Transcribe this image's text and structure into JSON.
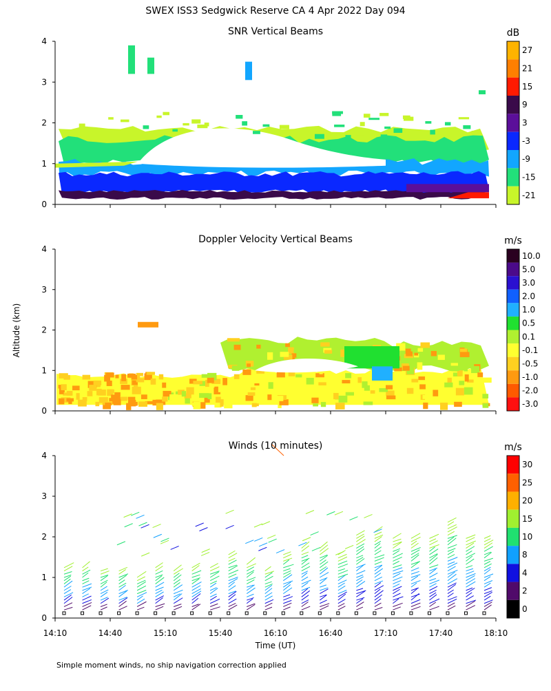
{
  "title": "SWEX ISS3 Sedgwick Reserve CA   4 Apr 2022 Day 094",
  "footnote": "Simple moment winds, no ship navigation correction applied",
  "y_axis_label": "Altitude (km)",
  "x_axis_label": "Time (UT)",
  "chart_data": [
    {
      "type": "heatmap",
      "title": "SNR Vertical Beams",
      "ylim": [
        0,
        4
      ],
      "y_ticks": [
        "0",
        "1",
        "2",
        "3",
        "4"
      ],
      "x_range": [
        "14:10",
        "18:10"
      ],
      "colorbar": {
        "unit": "dB",
        "labels": [
          "27",
          "21",
          "15",
          "9",
          "3",
          "-3",
          "-9",
          "-15",
          "-21"
        ],
        "colors": [
          "#ffb300",
          "#ff7f00",
          "#ff1a00",
          "#3a0a4a",
          "#5b0f9a",
          "#0a28ff",
          "#12a6ff",
          "#22e07a",
          "#c8f52a"
        ]
      },
      "layers": [
        {
          "band": "surface",
          "alt": [
            0.15,
            0.3
          ],
          "color": "#3a0a4a"
        },
        {
          "band": "low",
          "alt": [
            0.3,
            0.75
          ],
          "color": "#0a28ff"
        },
        {
          "band": "mid",
          "alt": [
            0.75,
            1.05
          ],
          "color": "#12a6ff"
        },
        {
          "band": "upper",
          "alt": [
            1.0,
            1.7
          ],
          "color": "#22e07a"
        },
        {
          "band": "top",
          "alt": [
            1.6,
            2.0
          ],
          "color": "#c8f52a"
        }
      ]
    },
    {
      "type": "heatmap",
      "title": "Doppler Velocity Vertical Beams",
      "ylim": [
        0,
        4
      ],
      "y_ticks": [
        "0",
        "1",
        "2",
        "3",
        "4"
      ],
      "x_range": [
        "14:10",
        "18:10"
      ],
      "colorbar": {
        "unit": "m/s",
        "labels": [
          "10.0",
          "5.0",
          "3.0",
          "2.0",
          "1.0",
          "0.5",
          "0.1",
          "-0.1",
          "-0.5",
          "-1.0",
          "-2.0",
          "-3.0"
        ],
        "colors": [
          "#2a0020",
          "#4b0a8a",
          "#2a10d0",
          "#1060ff",
          "#20b0ff",
          "#20e030",
          "#b0f030",
          "#ffff30",
          "#ffd020",
          "#ff9a10",
          "#ff5a00",
          "#ff1010"
        ]
      }
    },
    {
      "type": "scatter",
      "title": "Winds (10 minutes)",
      "ylim": [
        0,
        4
      ],
      "y_ticks": [
        "0",
        "1",
        "2",
        "3",
        "4"
      ],
      "x_ticks": [
        "14:10",
        "14:40",
        "15:10",
        "15:40",
        "16:10",
        "16:40",
        "17:10",
        "17:40",
        "18:10"
      ],
      "colorbar": {
        "unit": "m/s",
        "labels": [
          "30",
          "25",
          "20",
          "15",
          "10",
          "8",
          "4",
          "2",
          "0"
        ],
        "colors": [
          "#ff0000",
          "#ff6000",
          "#ffb000",
          "#a0f030",
          "#20e070",
          "#10a0ff",
          "#1010e0",
          "#500a6a",
          "#000000"
        ]
      },
      "profiles_top_km": [
        1.3,
        1.3,
        1.2,
        1.2,
        1.0,
        1.3,
        1.2,
        1.3,
        1.3,
        1.6,
        1.4,
        1.2,
        1.6,
        1.8,
        1.8,
        1.6,
        2.1,
        2.2,
        2.0,
        2.0,
        2.0,
        2.4,
        2.0,
        2.0
      ]
    }
  ]
}
